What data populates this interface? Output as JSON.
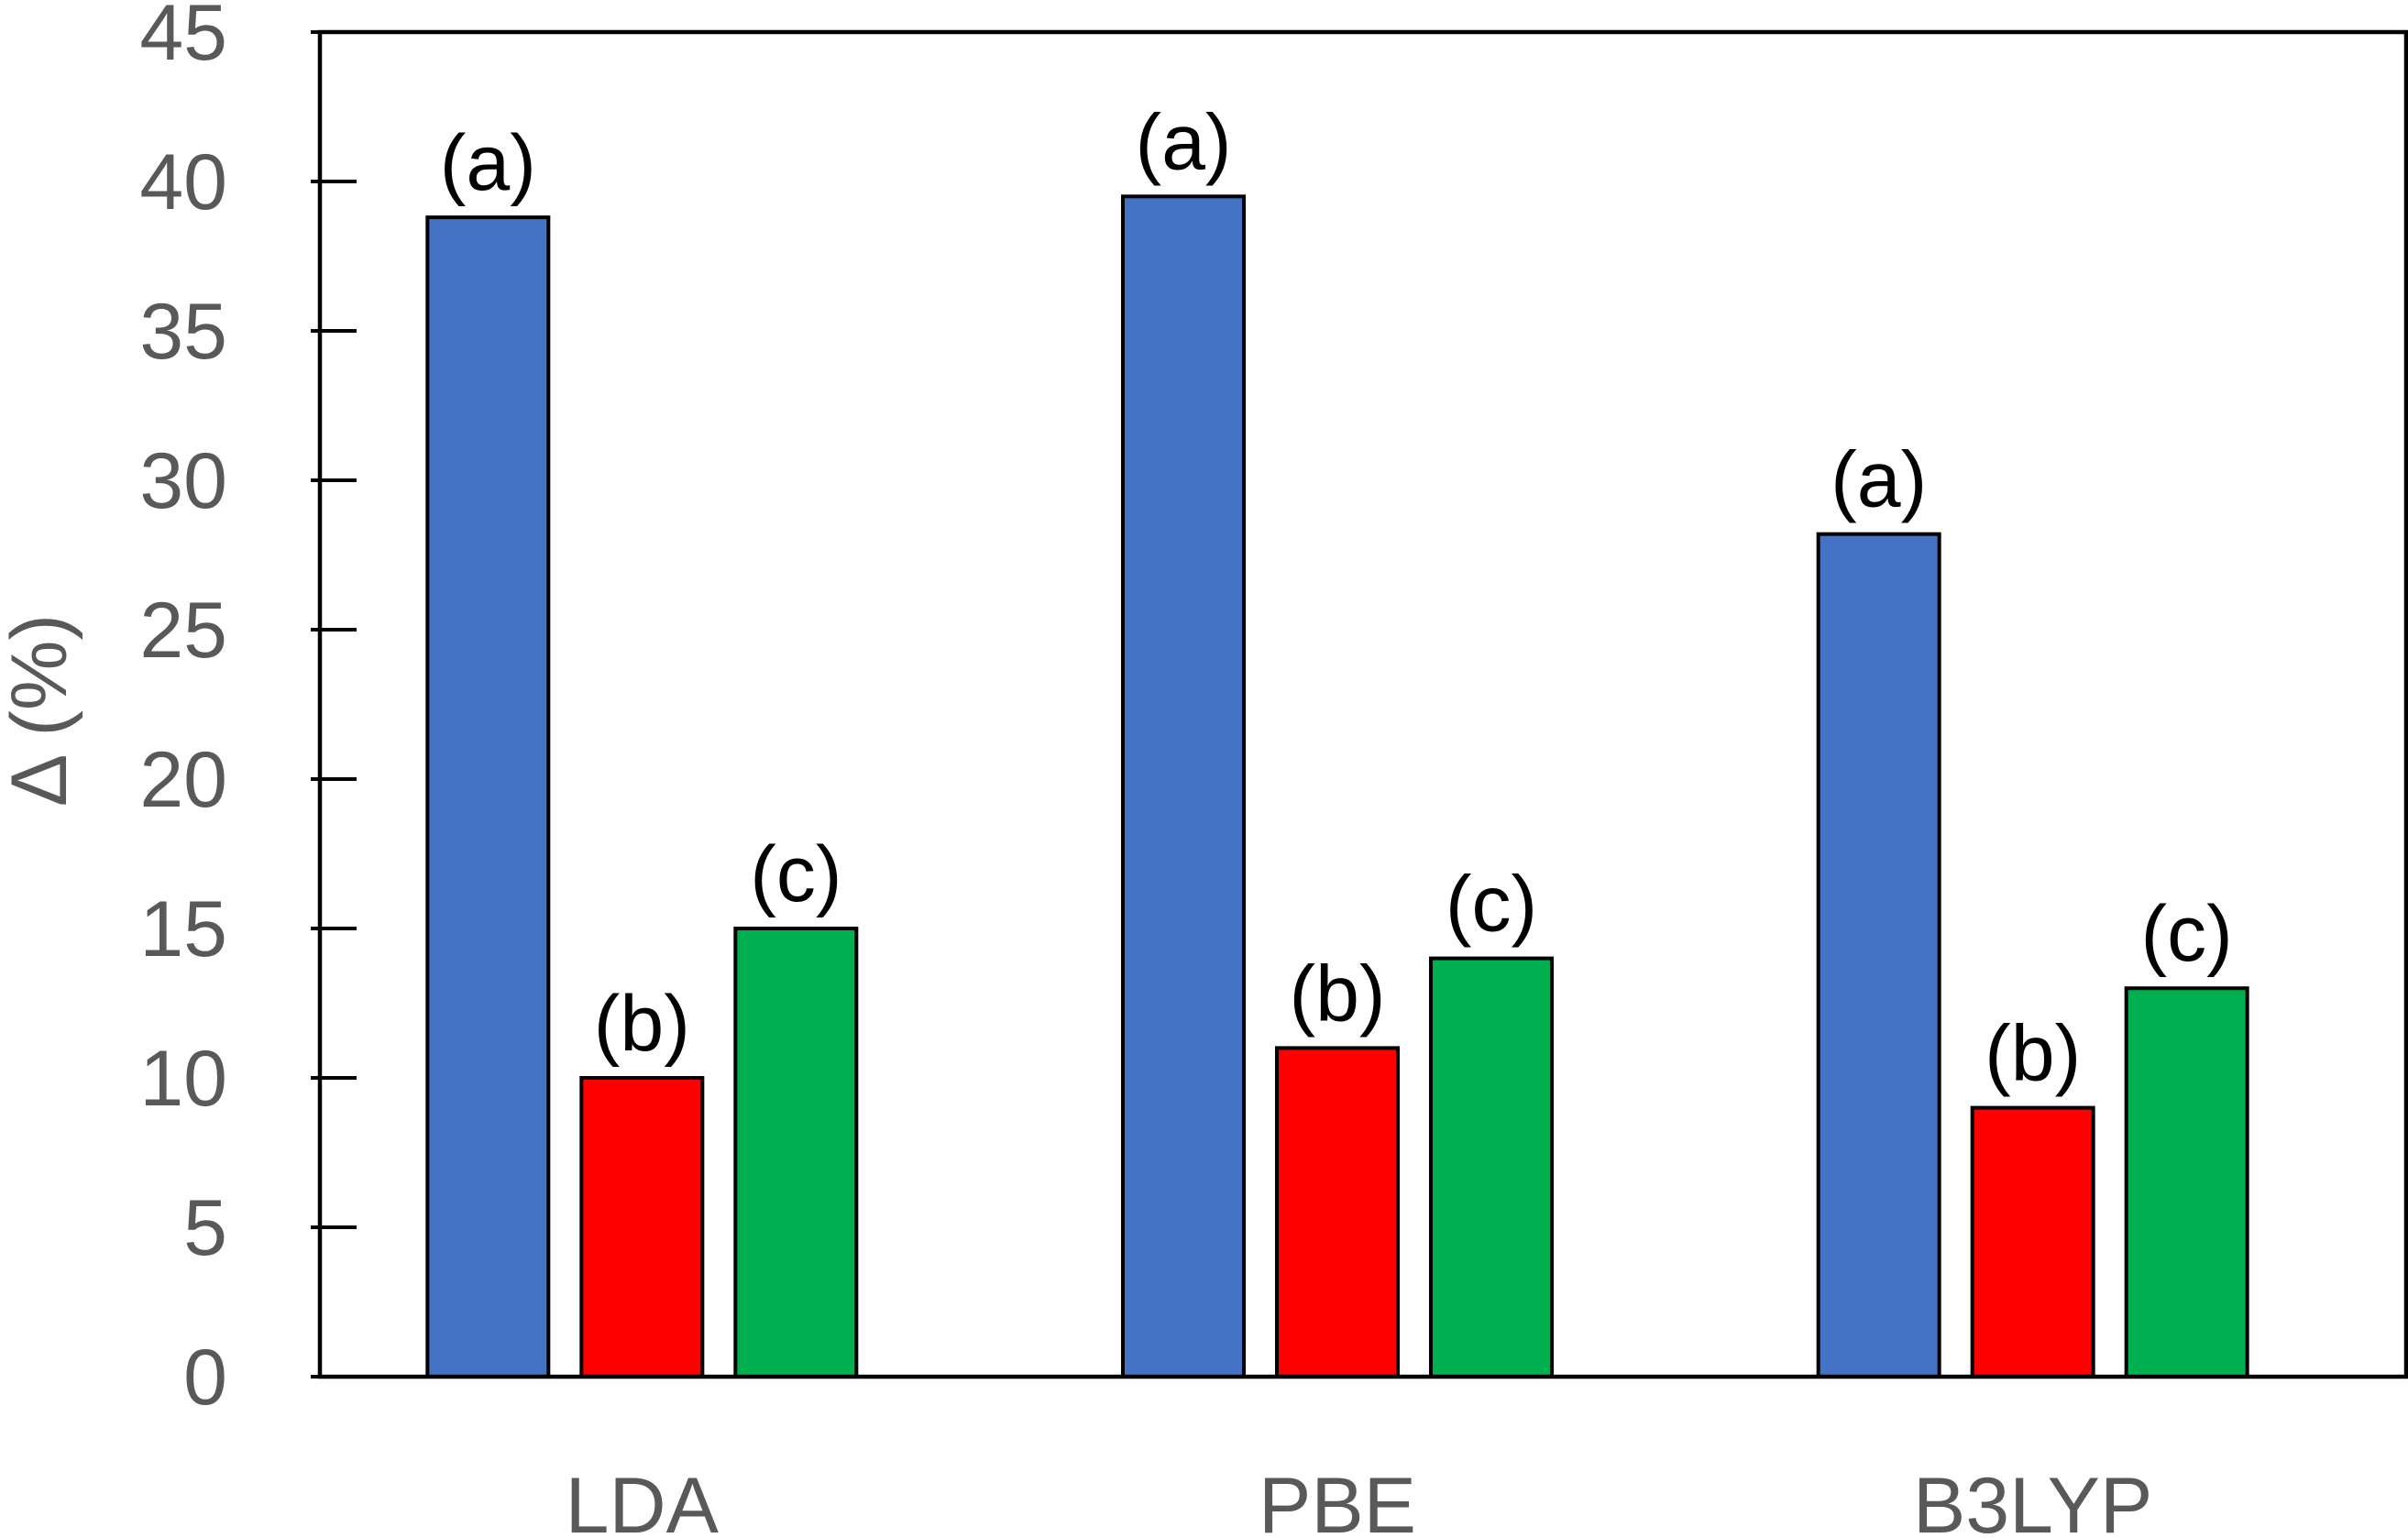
{
  "chart_data": {
    "type": "bar",
    "title": "",
    "xlabel": "",
    "ylabel": "Δ (%)",
    "ylim": [
      0,
      45
    ],
    "yticks": [
      0,
      5,
      10,
      15,
      20,
      25,
      30,
      35,
      40,
      45
    ],
    "ytick_labels": [
      "0",
      "5",
      "10",
      "15",
      "20",
      "25",
      "30",
      "35",
      "40",
      "45"
    ],
    "categories": [
      "LDA",
      "PBE",
      "B3LYP"
    ],
    "grid": false,
    "series": [
      {
        "label": "(a)",
        "color": "#4472C4",
        "values": [
          38.8,
          39.5,
          28.2
        ]
      },
      {
        "label": "(b)",
        "color": "#FF0000",
        "values": [
          10.0,
          11.0,
          9.0
        ]
      },
      {
        "label": "(c)",
        "color": "#00B050",
        "values": [
          15.0,
          14.0,
          13.0
        ]
      }
    ]
  }
}
